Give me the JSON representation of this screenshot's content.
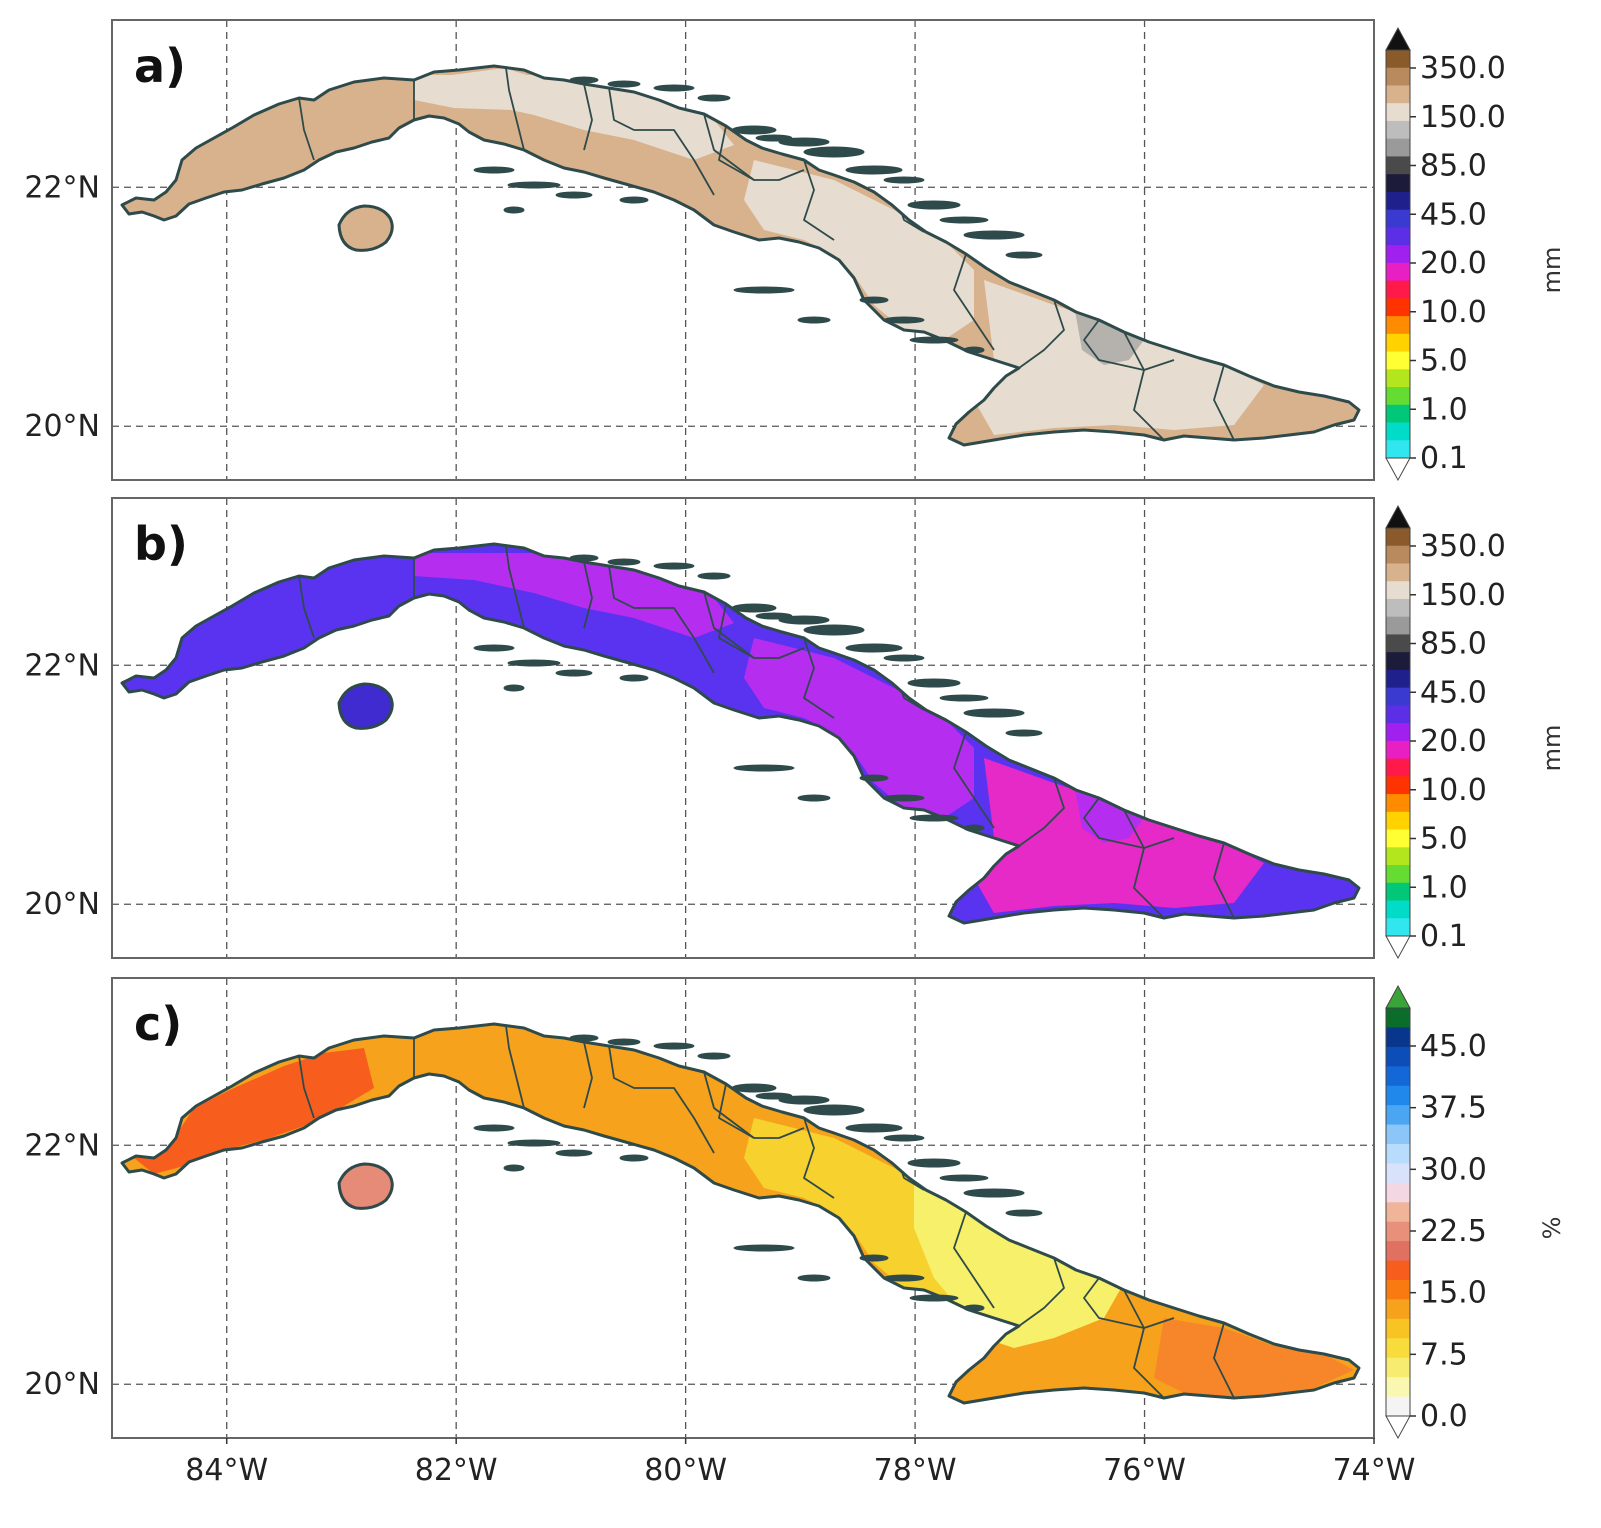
{
  "figure": {
    "panels": [
      {
        "label": "a)",
        "map_type": "precipitation",
        "unit": "mm",
        "base_color": "#d8b28c",
        "patches": [
          {
            "color": "#e6dcd0",
            "region": "north-central"
          },
          {
            "color": "#e6dcd0",
            "region": "center-east"
          },
          {
            "color": "#e6dcd0",
            "region": "east"
          },
          {
            "color": "#b5b1ac",
            "region": "east-dry"
          },
          {
            "color": "#e6dcd0",
            "region": "west-mid"
          }
        ],
        "colorbar": {
          "ticks": [
            "350.0",
            "150.0",
            "85.0",
            "45.0",
            "20.0",
            "10.0",
            "5.0",
            "1.0",
            "0.1"
          ],
          "colors": [
            "#8b5a2b",
            "#b88a5e",
            "#d8b28c",
            "#e6dcd0",
            "#bdbdbd",
            "#9a9a9a",
            "#4a4a4a",
            "#1c1c3a",
            "#20208c",
            "#3a3ad0",
            "#5c2ee6",
            "#a020f0",
            "#e81fc2",
            "#ff1a4a",
            "#ff3300",
            "#ff8c00",
            "#ffd200",
            "#ffff33",
            "#b4e61e",
            "#64dc32",
            "#00c878",
            "#00dcc8",
            "#32e6f0"
          ],
          "top_arrow_color": "#111111",
          "bottom_arrow_color": "#ffffff"
        }
      },
      {
        "label": "b)",
        "map_type": "precipitation",
        "unit": "mm",
        "base_color": "#5a33f0",
        "patches": [
          {
            "color": "#b52ef0",
            "region": "north-central"
          },
          {
            "color": "#b52ef0",
            "region": "center-east"
          },
          {
            "color": "#e52ac8",
            "region": "east"
          },
          {
            "color": "#b52ef0",
            "region": "east-dry"
          },
          {
            "color": "#3f2bd0",
            "region": "island"
          }
        ],
        "colorbar": {
          "ticks": [
            "350.0",
            "150.0",
            "85.0",
            "45.0",
            "20.0",
            "10.0",
            "5.0",
            "1.0",
            "0.1"
          ],
          "colors": [
            "#8b5a2b",
            "#b88a5e",
            "#d8b28c",
            "#e6dcd0",
            "#bdbdbd",
            "#9a9a9a",
            "#4a4a4a",
            "#1c1c3a",
            "#20208c",
            "#3a3ad0",
            "#5c2ee6",
            "#a020f0",
            "#e81fc2",
            "#ff1a4a",
            "#ff3300",
            "#ff8c00",
            "#ffd200",
            "#ffff33",
            "#b4e61e",
            "#64dc32",
            "#00c878",
            "#00dcc8",
            "#32e6f0"
          ],
          "top_arrow_color": "#111111",
          "bottom_arrow_color": "#ffffff"
        }
      },
      {
        "label": "c)",
        "map_type": "percent",
        "unit": "%",
        "base_color": "#f7a21c",
        "patches": [
          {
            "color": "#f75e1e",
            "region": "west"
          },
          {
            "color": "#f7d22e",
            "region": "center-east"
          },
          {
            "color": "#f6f06a",
            "region": "east-light"
          },
          {
            "color": "#f7862a",
            "region": "southeast"
          },
          {
            "color": "#e58b78",
            "region": "island"
          }
        ],
        "colorbar": {
          "ticks": [
            "45.0",
            "37.5",
            "30.0",
            "22.5",
            "15.0",
            "7.5",
            "0.0"
          ],
          "colors": [
            "#0a6d2a",
            "#07368c",
            "#0c4db8",
            "#1467d6",
            "#1f88ea",
            "#4aa6f2",
            "#8cc6f8",
            "#b8dcfb",
            "#d8e2fa",
            "#f3d8e4",
            "#f0b49a",
            "#e8907a",
            "#e07060",
            "#f75e1e",
            "#f87a10",
            "#f7a21c",
            "#f8c424",
            "#f8dc3c",
            "#f8ec70",
            "#faf7b0",
            "#f4f4f4"
          ],
          "top_arrow_color": "#3aa33a",
          "bottom_arrow_color": "#ffffff"
        }
      }
    ],
    "y_tick_labels": [
      "22°N",
      "20°N"
    ],
    "x_tick_labels": [
      "84°W",
      "82°W",
      "80°W",
      "78°W",
      "76°W",
      "74°W"
    ],
    "lat_ticks": [
      22,
      20
    ],
    "lon_ticks": [
      -84,
      -82,
      -80,
      -78,
      -76,
      -74
    ]
  }
}
